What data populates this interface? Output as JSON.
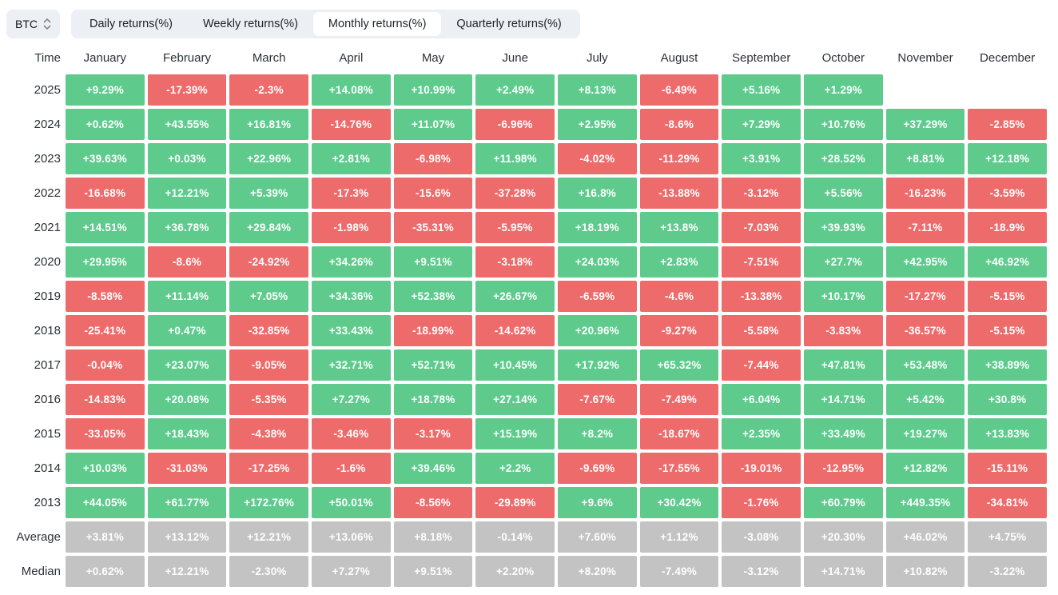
{
  "symbol_selector": {
    "value": "BTC",
    "icon": "up-down-chevron-icon"
  },
  "tabs": [
    {
      "id": "daily-returns",
      "label": "Daily returns(%)",
      "active": false
    },
    {
      "id": "weekly-returns",
      "label": "Weekly returns(%)",
      "active": false
    },
    {
      "id": "monthly-returns",
      "label": "Monthly returns(%)",
      "active": true
    },
    {
      "id": "quarterly-returns",
      "label": "Quarterly returns(%)",
      "active": false
    }
  ],
  "colors": {
    "positive": "#5ECB8D",
    "negative": "#EE6B6B",
    "summary": "#C3C3C3",
    "chip_background": "#ECEFF3",
    "text": "#1E2329"
  },
  "chart_data": {
    "type": "heatmap",
    "title": "BTC Monthly returns(%)",
    "legend_position": "none",
    "grid": false,
    "columns": [
      "Time",
      "January",
      "February",
      "March",
      "April",
      "May",
      "June",
      "July",
      "August",
      "September",
      "October",
      "November",
      "December"
    ],
    "rows": [
      {
        "label": "2025",
        "type": "year",
        "values": [
          "+9.29%",
          "-17.39%",
          "-2.3%",
          "+14.08%",
          "+10.99%",
          "+2.49%",
          "+8.13%",
          "-6.49%",
          "+5.16%",
          "+1.29%",
          "",
          ""
        ]
      },
      {
        "label": "2024",
        "type": "year",
        "values": [
          "+0.62%",
          "+43.55%",
          "+16.81%",
          "-14.76%",
          "+11.07%",
          "-6.96%",
          "+2.95%",
          "-8.6%",
          "+7.29%",
          "+10.76%",
          "+37.29%",
          "-2.85%"
        ]
      },
      {
        "label": "2023",
        "type": "year",
        "values": [
          "+39.63%",
          "+0.03%",
          "+22.96%",
          "+2.81%",
          "-6.98%",
          "+11.98%",
          "-4.02%",
          "-11.29%",
          "+3.91%",
          "+28.52%",
          "+8.81%",
          "+12.18%"
        ]
      },
      {
        "label": "2022",
        "type": "year",
        "values": [
          "-16.68%",
          "+12.21%",
          "+5.39%",
          "-17.3%",
          "-15.6%",
          "-37.28%",
          "+16.8%",
          "-13.88%",
          "-3.12%",
          "+5.56%",
          "-16.23%",
          "-3.59%"
        ]
      },
      {
        "label": "2021",
        "type": "year",
        "values": [
          "+14.51%",
          "+36.78%",
          "+29.84%",
          "-1.98%",
          "-35.31%",
          "-5.95%",
          "+18.19%",
          "+13.8%",
          "-7.03%",
          "+39.93%",
          "-7.11%",
          "-18.9%"
        ]
      },
      {
        "label": "2020",
        "type": "year",
        "values": [
          "+29.95%",
          "-8.6%",
          "-24.92%",
          "+34.26%",
          "+9.51%",
          "-3.18%",
          "+24.03%",
          "+2.83%",
          "-7.51%",
          "+27.7%",
          "+42.95%",
          "+46.92%"
        ]
      },
      {
        "label": "2019",
        "type": "year",
        "values": [
          "-8.58%",
          "+11.14%",
          "+7.05%",
          "+34.36%",
          "+52.38%",
          "+26.67%",
          "-6.59%",
          "-4.6%",
          "-13.38%",
          "+10.17%",
          "-17.27%",
          "-5.15%"
        ]
      },
      {
        "label": "2018",
        "type": "year",
        "values": [
          "-25.41%",
          "+0.47%",
          "-32.85%",
          "+33.43%",
          "-18.99%",
          "-14.62%",
          "+20.96%",
          "-9.27%",
          "-5.58%",
          "-3.83%",
          "-36.57%",
          "-5.15%"
        ]
      },
      {
        "label": "2017",
        "type": "year",
        "values": [
          "-0.04%",
          "+23.07%",
          "-9.05%",
          "+32.71%",
          "+52.71%",
          "+10.45%",
          "+17.92%",
          "+65.32%",
          "-7.44%",
          "+47.81%",
          "+53.48%",
          "+38.89%"
        ]
      },
      {
        "label": "2016",
        "type": "year",
        "values": [
          "-14.83%",
          "+20.08%",
          "-5.35%",
          "+7.27%",
          "+18.78%",
          "+27.14%",
          "-7.67%",
          "-7.49%",
          "+6.04%",
          "+14.71%",
          "+5.42%",
          "+30.8%"
        ]
      },
      {
        "label": "2015",
        "type": "year",
        "values": [
          "-33.05%",
          "+18.43%",
          "-4.38%",
          "-3.46%",
          "-3.17%",
          "+15.19%",
          "+8.2%",
          "-18.67%",
          "+2.35%",
          "+33.49%",
          "+19.27%",
          "+13.83%"
        ]
      },
      {
        "label": "2014",
        "type": "year",
        "values": [
          "+10.03%",
          "-31.03%",
          "-17.25%",
          "-1.6%",
          "+39.46%",
          "+2.2%",
          "-9.69%",
          "-17.55%",
          "-19.01%",
          "-12.95%",
          "+12.82%",
          "-15.11%"
        ]
      },
      {
        "label": "2013",
        "type": "year",
        "values": [
          "+44.05%",
          "+61.77%",
          "+172.76%",
          "+50.01%",
          "-8.56%",
          "-29.89%",
          "+9.6%",
          "+30.42%",
          "-1.76%",
          "+60.79%",
          "+449.35%",
          "-34.81%"
        ]
      },
      {
        "label": "Average",
        "type": "summary",
        "values": [
          "+3.81%",
          "+13.12%",
          "+12.21%",
          "+13.06%",
          "+8.18%",
          "-0.14%",
          "+7.60%",
          "+1.12%",
          "-3.08%",
          "+20.30%",
          "+46.02%",
          "+4.75%"
        ]
      },
      {
        "label": "Median",
        "type": "summary",
        "values": [
          "+0.62%",
          "+12.21%",
          "-2.30%",
          "+7.27%",
          "+9.51%",
          "+2.20%",
          "+8.20%",
          "-7.49%",
          "-3.12%",
          "+14.71%",
          "+10.82%",
          "-3.22%"
        ]
      }
    ]
  }
}
